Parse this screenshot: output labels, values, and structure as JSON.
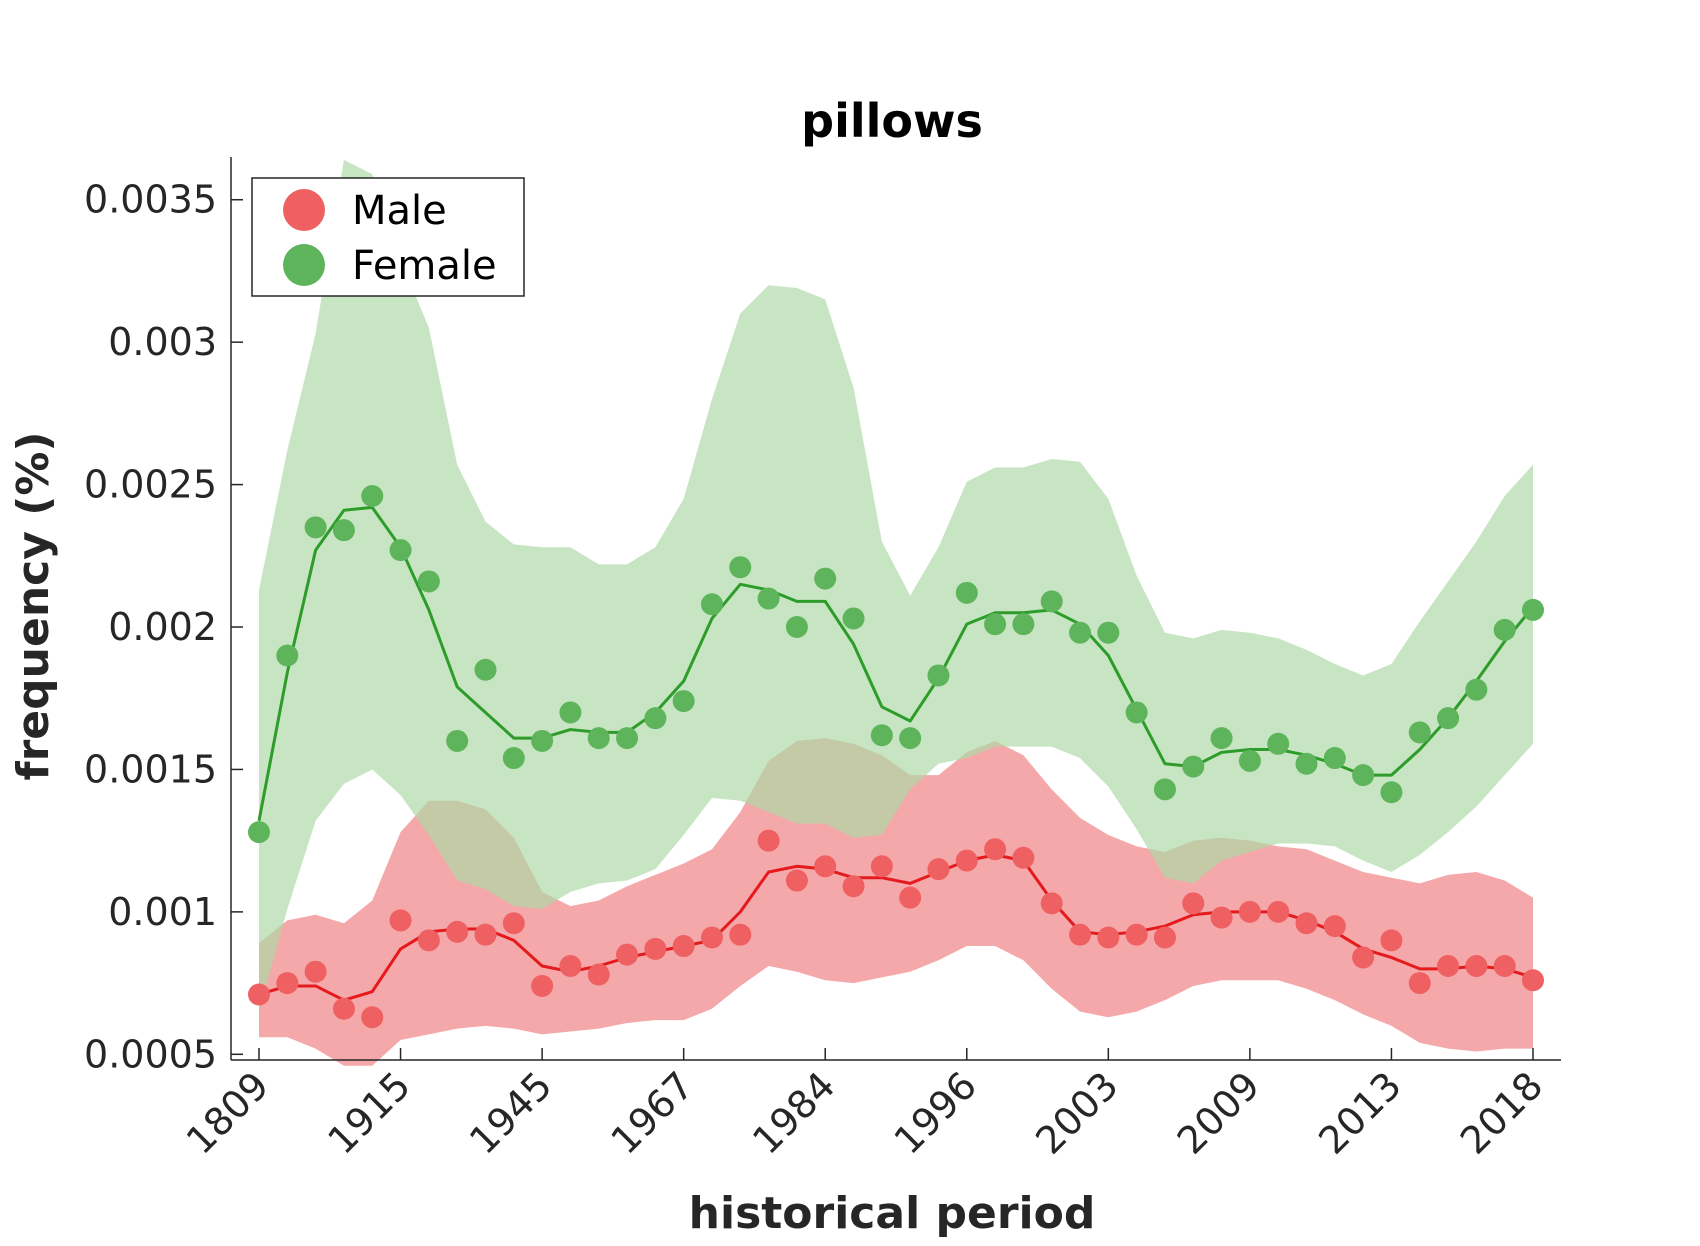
{
  "chart_data": {
    "type": "line",
    "title": "pillows",
    "xlabel": "historical period",
    "ylabel": "frequency (%)",
    "ylim": [
      0.00048,
      0.00365
    ],
    "yticks": [
      0.0005,
      0.001,
      0.0015,
      0.002,
      0.0025,
      0.003,
      0.0035
    ],
    "ytick_labels": [
      "0.0005",
      "0.001",
      "0.0015",
      "0.002",
      "0.0025",
      "0.003",
      "0.0035"
    ],
    "xtick_labels": [
      "1809",
      "1915",
      "1945",
      "1967",
      "1984",
      "1996",
      "2003",
      "2009",
      "2013",
      "2018"
    ],
    "xtick_index": [
      0,
      5,
      10,
      15,
      20,
      25,
      30,
      35,
      40,
      45
    ],
    "n_points": 46,
    "legend_position": "top-left",
    "grid": false,
    "series": [
      {
        "name": "Male",
        "color": "#e41a1c",
        "marker_color": "#ee6061",
        "band_color": "#f4a3a4",
        "scatter": [
          0.00071,
          0.00075,
          0.00079,
          0.00066,
          0.00063,
          0.00097,
          0.0009,
          0.00093,
          0.00092,
          0.00096,
          0.00074,
          0.00081,
          0.00078,
          0.00085,
          0.00087,
          0.00088,
          0.00091,
          0.00092,
          0.00125,
          0.00111,
          0.00116,
          0.00109,
          0.00116,
          0.00105,
          0.00115,
          0.00118,
          0.00122,
          0.00119,
          0.00103,
          0.00092,
          0.00091,
          0.00092,
          0.00091,
          0.00103,
          0.00098,
          0.001,
          0.001,
          0.00096,
          0.00095,
          0.00084,
          0.0009,
          0.00075,
          0.00081,
          0.00081,
          0.00081,
          0.00076
        ],
        "line": [
          0.00071,
          0.00074,
          0.00074,
          0.00069,
          0.00072,
          0.00087,
          0.00093,
          0.00094,
          0.00094,
          0.0009,
          0.00081,
          0.00079,
          0.00081,
          0.00084,
          0.00086,
          0.00088,
          0.0009,
          0.001,
          0.00114,
          0.00116,
          0.00115,
          0.00112,
          0.00112,
          0.0011,
          0.00114,
          0.00118,
          0.0012,
          0.00118,
          0.00104,
          0.00093,
          0.00092,
          0.00093,
          0.00095,
          0.00099,
          0.001,
          0.001,
          0.001,
          0.00097,
          0.00093,
          0.00087,
          0.00084,
          0.0008,
          0.0008,
          0.00081,
          0.0008,
          0.00077
        ],
        "band_upper": [
          0.00089,
          0.00097,
          0.00099,
          0.00096,
          0.00104,
          0.00128,
          0.00139,
          0.00139,
          0.00136,
          0.00126,
          0.00107,
          0.00102,
          0.00104,
          0.00109,
          0.00113,
          0.00117,
          0.00122,
          0.00135,
          0.00153,
          0.0016,
          0.00161,
          0.00159,
          0.00155,
          0.00148,
          0.00148,
          0.00156,
          0.0016,
          0.00155,
          0.00143,
          0.00133,
          0.00127,
          0.00123,
          0.00121,
          0.00125,
          0.00126,
          0.00125,
          0.00123,
          0.00122,
          0.00118,
          0.00114,
          0.00112,
          0.0011,
          0.00113,
          0.00114,
          0.00111,
          0.00105
        ],
        "band_lower": [
          0.00056,
          0.00056,
          0.00052,
          0.00046,
          0.00046,
          0.00055,
          0.00057,
          0.00059,
          0.0006,
          0.00059,
          0.00057,
          0.00058,
          0.00059,
          0.00061,
          0.00062,
          0.00062,
          0.00066,
          0.00074,
          0.00081,
          0.00079,
          0.00076,
          0.00075,
          0.00077,
          0.00079,
          0.00083,
          0.00088,
          0.00088,
          0.00083,
          0.00073,
          0.00065,
          0.00063,
          0.00065,
          0.00069,
          0.00074,
          0.00076,
          0.00076,
          0.00076,
          0.00073,
          0.00069,
          0.00064,
          0.0006,
          0.00054,
          0.00052,
          0.00051,
          0.00052,
          0.00052
        ]
      },
      {
        "name": "Female",
        "color": "#2e9c2a",
        "marker_color": "#5eb45b",
        "band_color": "#add9a5",
        "scatter": [
          0.00128,
          0.0019,
          0.00235,
          0.00234,
          0.00246,
          0.00227,
          0.00216,
          0.0016,
          0.00185,
          0.00154,
          0.0016,
          0.0017,
          0.00161,
          0.00161,
          0.00168,
          0.00174,
          0.00208,
          0.00221,
          0.0021,
          0.002,
          0.00217,
          0.00203,
          0.00162,
          0.00161,
          0.00183,
          0.00212,
          0.00201,
          0.00201,
          0.00209,
          0.00198,
          0.00198,
          0.0017,
          0.00143,
          0.00151,
          0.00161,
          0.00153,
          0.00159,
          0.00152,
          0.00154,
          0.00148,
          0.00142,
          0.00163,
          0.00168,
          0.00178,
          0.00199,
          0.00206
        ],
        "line": [
          0.00132,
          0.00184,
          0.00227,
          0.00241,
          0.00242,
          0.00228,
          0.00206,
          0.00179,
          0.0017,
          0.00161,
          0.00161,
          0.00164,
          0.00163,
          0.00163,
          0.0017,
          0.00181,
          0.00203,
          0.00215,
          0.00213,
          0.00209,
          0.00209,
          0.00194,
          0.00172,
          0.00167,
          0.00182,
          0.00201,
          0.00205,
          0.00205,
          0.00206,
          0.00201,
          0.0019,
          0.00171,
          0.00152,
          0.00151,
          0.00156,
          0.00157,
          0.00157,
          0.00155,
          0.00152,
          0.00148,
          0.00148,
          0.00157,
          0.00168,
          0.00181,
          0.00195,
          0.00207
        ],
        "band_upper": [
          0.00213,
          0.00262,
          0.00303,
          0.00364,
          0.00359,
          0.00329,
          0.00305,
          0.00257,
          0.00237,
          0.00229,
          0.00228,
          0.00228,
          0.00222,
          0.00222,
          0.00228,
          0.00245,
          0.0028,
          0.0031,
          0.0032,
          0.00319,
          0.00315,
          0.00284,
          0.0023,
          0.00211,
          0.00228,
          0.00251,
          0.00256,
          0.00256,
          0.00259,
          0.00258,
          0.00245,
          0.00218,
          0.00198,
          0.00196,
          0.00199,
          0.00198,
          0.00196,
          0.00192,
          0.00187,
          0.00183,
          0.00187,
          0.00202,
          0.00216,
          0.0023,
          0.00246,
          0.00257
        ],
        "band_lower": [
          0.00065,
          0.00101,
          0.00132,
          0.00145,
          0.0015,
          0.00141,
          0.00127,
          0.00111,
          0.00108,
          0.00102,
          0.00101,
          0.00107,
          0.0011,
          0.00111,
          0.00115,
          0.00127,
          0.0014,
          0.00139,
          0.00135,
          0.00131,
          0.00131,
          0.00126,
          0.00127,
          0.00143,
          0.00152,
          0.00154,
          0.00158,
          0.00158,
          0.00158,
          0.00154,
          0.00144,
          0.00129,
          0.00112,
          0.0011,
          0.00118,
          0.00121,
          0.00124,
          0.00124,
          0.00123,
          0.00118,
          0.00114,
          0.0012,
          0.00128,
          0.00137,
          0.00148,
          0.00159
        ]
      }
    ]
  }
}
